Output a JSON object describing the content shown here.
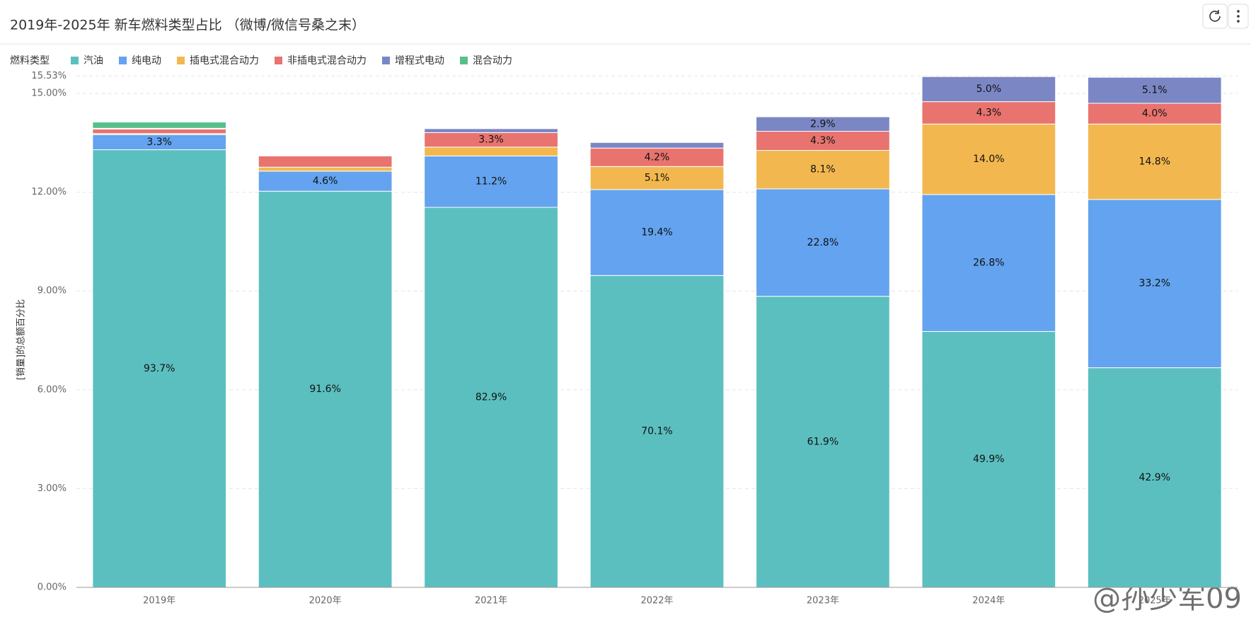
{
  "chart_data": {
    "type": "stacked_bar",
    "title": "2019年-2025年 新车燃料类型占比 （微博/微信号桑之末）",
    "legend_title": "燃料类型",
    "y_label": "[销量]的总额百分比",
    "watermark": "@孙少军09",
    "categories": [
      "2019年",
      "2020年",
      "2021年",
      "2022年",
      "2023年",
      "2024年",
      "2025年"
    ],
    "ylim": [
      0,
      15.53
    ],
    "yticks": [
      {
        "value": 0,
        "label": "0.00%"
      },
      {
        "value": 3,
        "label": "3.00%"
      },
      {
        "value": 6,
        "label": "6.00%"
      },
      {
        "value": 9,
        "label": "9.00%"
      },
      {
        "value": 12,
        "label": "12.00%"
      },
      {
        "value": 15,
        "label": "15.00%"
      },
      {
        "value": 15.53,
        "label": "15.53%"
      }
    ],
    "grid": true,
    "series": [
      {
        "name": "汽油",
        "color": "#5bbfbf",
        "values": [
          13.29,
          12.03,
          11.54,
          9.47,
          8.84,
          7.77,
          6.67
        ],
        "labels": [
          "93.7%",
          "91.6%",
          "82.9%",
          "70.1%",
          "61.9%",
          "49.9%",
          "42.9%"
        ]
      },
      {
        "name": "纯电动",
        "color": "#63a3ef",
        "values": [
          0.46,
          0.61,
          1.56,
          2.61,
          3.26,
          4.16,
          5.11
        ],
        "labels": [
          "3.3%",
          "4.6%",
          "11.2%",
          "19.4%",
          "22.8%",
          "26.8%",
          "33.2%"
        ]
      },
      {
        "name": "插电式混合动力",
        "color": "#f2b84f",
        "values": [
          0.03,
          0.12,
          0.27,
          0.7,
          1.17,
          2.14,
          2.29
        ],
        "labels": [
          null,
          null,
          null,
          "5.1%",
          "8.1%",
          "14.0%",
          "14.8%"
        ]
      },
      {
        "name": "非插电式混合动力",
        "color": "#e8736f",
        "values": [
          0.14,
          0.34,
          0.44,
          0.56,
          0.58,
          0.68,
          0.63
        ],
        "labels": [
          null,
          null,
          "3.3%",
          "4.2%",
          "4.3%",
          "4.3%",
          "4.0%"
        ]
      },
      {
        "name": "增程式电动",
        "color": "#7b87c4",
        "values": [
          0.02,
          0,
          0.12,
          0.17,
          0.44,
          0.76,
          0.79
        ],
        "labels": [
          null,
          null,
          null,
          null,
          "2.9%",
          "5.0%",
          "5.1%"
        ]
      },
      {
        "name": "混合动力",
        "color": "#57c08a",
        "values": [
          0.19,
          0,
          0,
          0,
          0,
          0,
          0
        ],
        "labels": [
          null,
          null,
          null,
          null,
          null,
          null,
          null
        ]
      }
    ]
  }
}
